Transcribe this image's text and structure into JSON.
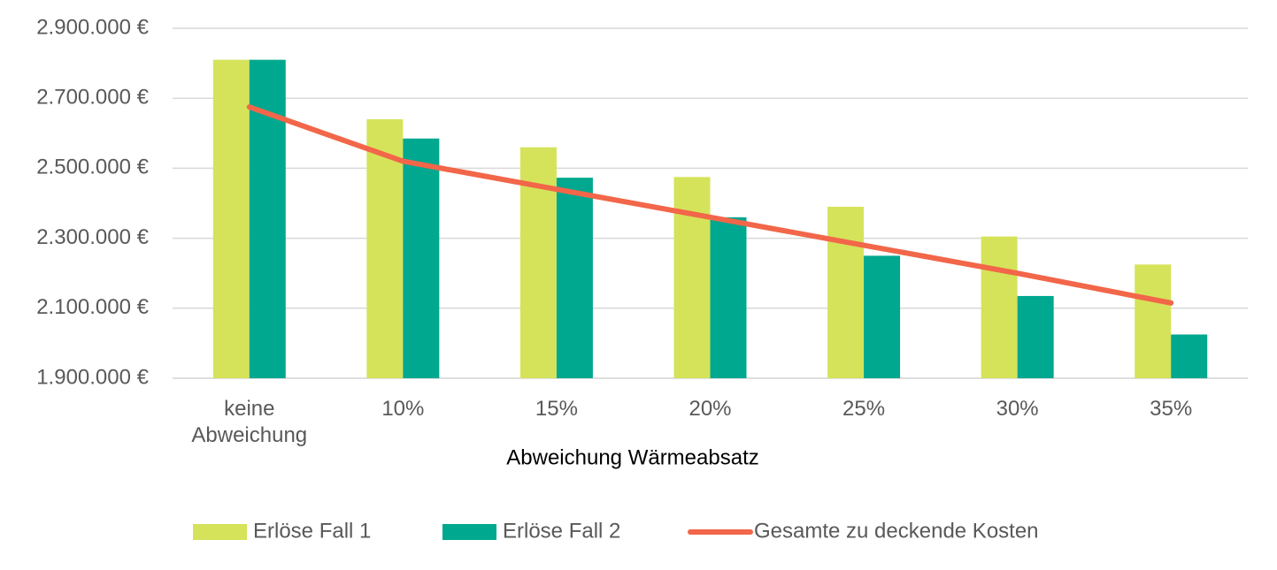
{
  "chart_data": {
    "type": "bar",
    "x_label": "Abweichung Wärmeabsatz",
    "categories": [
      "keine Abweichung",
      "10%",
      "15%",
      "20%",
      "25%",
      "30%",
      "35%"
    ],
    "series": [
      {
        "name": "Erlöse Fall 1",
        "type": "bar",
        "color": "#d5e35a",
        "values": [
          2810000,
          2640000,
          2560000,
          2475000,
          2390000,
          2305000,
          2225000
        ]
      },
      {
        "name": "Erlöse Fall 2",
        "type": "bar",
        "color": "#00a88f",
        "values": [
          2810000,
          2585000,
          2473000,
          2360000,
          2250000,
          2135000,
          2025000
        ]
      },
      {
        "name": "Gesamte zu deckende Kosten",
        "type": "line",
        "color": "#f26649",
        "values": [
          2675000,
          2520000,
          2440000,
          2360000,
          2280000,
          2200000,
          2115000
        ]
      }
    ],
    "ylim": [
      1900000,
      2900000
    ],
    "yticks": [
      {
        "value": 1900000,
        "label": "1.900.000 €"
      },
      {
        "value": 2100000,
        "label": "2.100.000 €"
      },
      {
        "value": 2300000,
        "label": "2.300.000 €"
      },
      {
        "value": 2500000,
        "label": "2.500.000 €"
      },
      {
        "value": 2700000,
        "label": "2.700.000 €"
      },
      {
        "value": 2900000,
        "label": "2.900.000 €"
      }
    ],
    "grid": true,
    "legend": "bottom"
  }
}
